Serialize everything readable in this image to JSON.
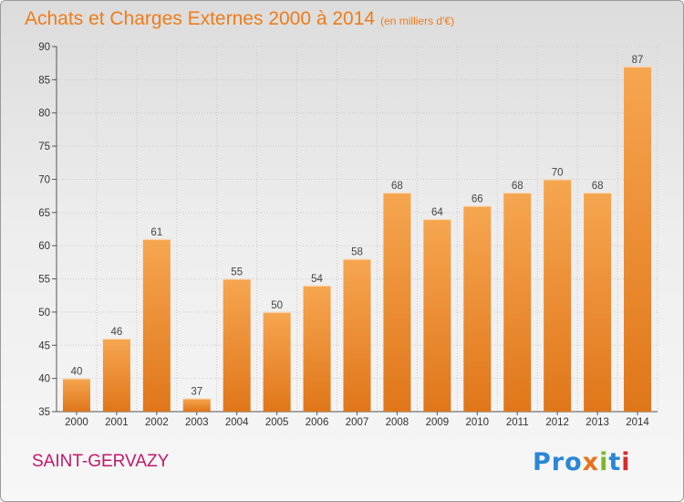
{
  "header": {
    "title": "Achats et Charges Externes 2000 à 2014",
    "subtitle": "(en milliers d'€)"
  },
  "footer": {
    "commune": "SAINT-GERVAZY",
    "logo_parts": [
      "Pro",
      "x",
      "i",
      "t",
      "i"
    ]
  },
  "colors": {
    "title": "#ee7c1a",
    "bar_top": "#f6a650",
    "bar_bottom": "#e0761a",
    "commune": "#c2186b"
  },
  "chart_data": {
    "type": "bar",
    "title": "Achats et Charges Externes 2000 à 2014",
    "subtitle": "(en milliers d'€)",
    "categories": [
      "2000",
      "2001",
      "2002",
      "2003",
      "2004",
      "2005",
      "2006",
      "2007",
      "2008",
      "2009",
      "2010",
      "2011",
      "2012",
      "2013",
      "2014"
    ],
    "values": [
      40,
      46,
      61,
      37,
      55,
      50,
      54,
      58,
      68,
      64,
      66,
      68,
      70,
      68,
      87
    ],
    "ylim": [
      35,
      90
    ],
    "yticks": [
      35,
      40,
      45,
      50,
      55,
      60,
      65,
      70,
      75,
      80,
      85,
      90
    ],
    "grid": true,
    "data_labels": true
  }
}
